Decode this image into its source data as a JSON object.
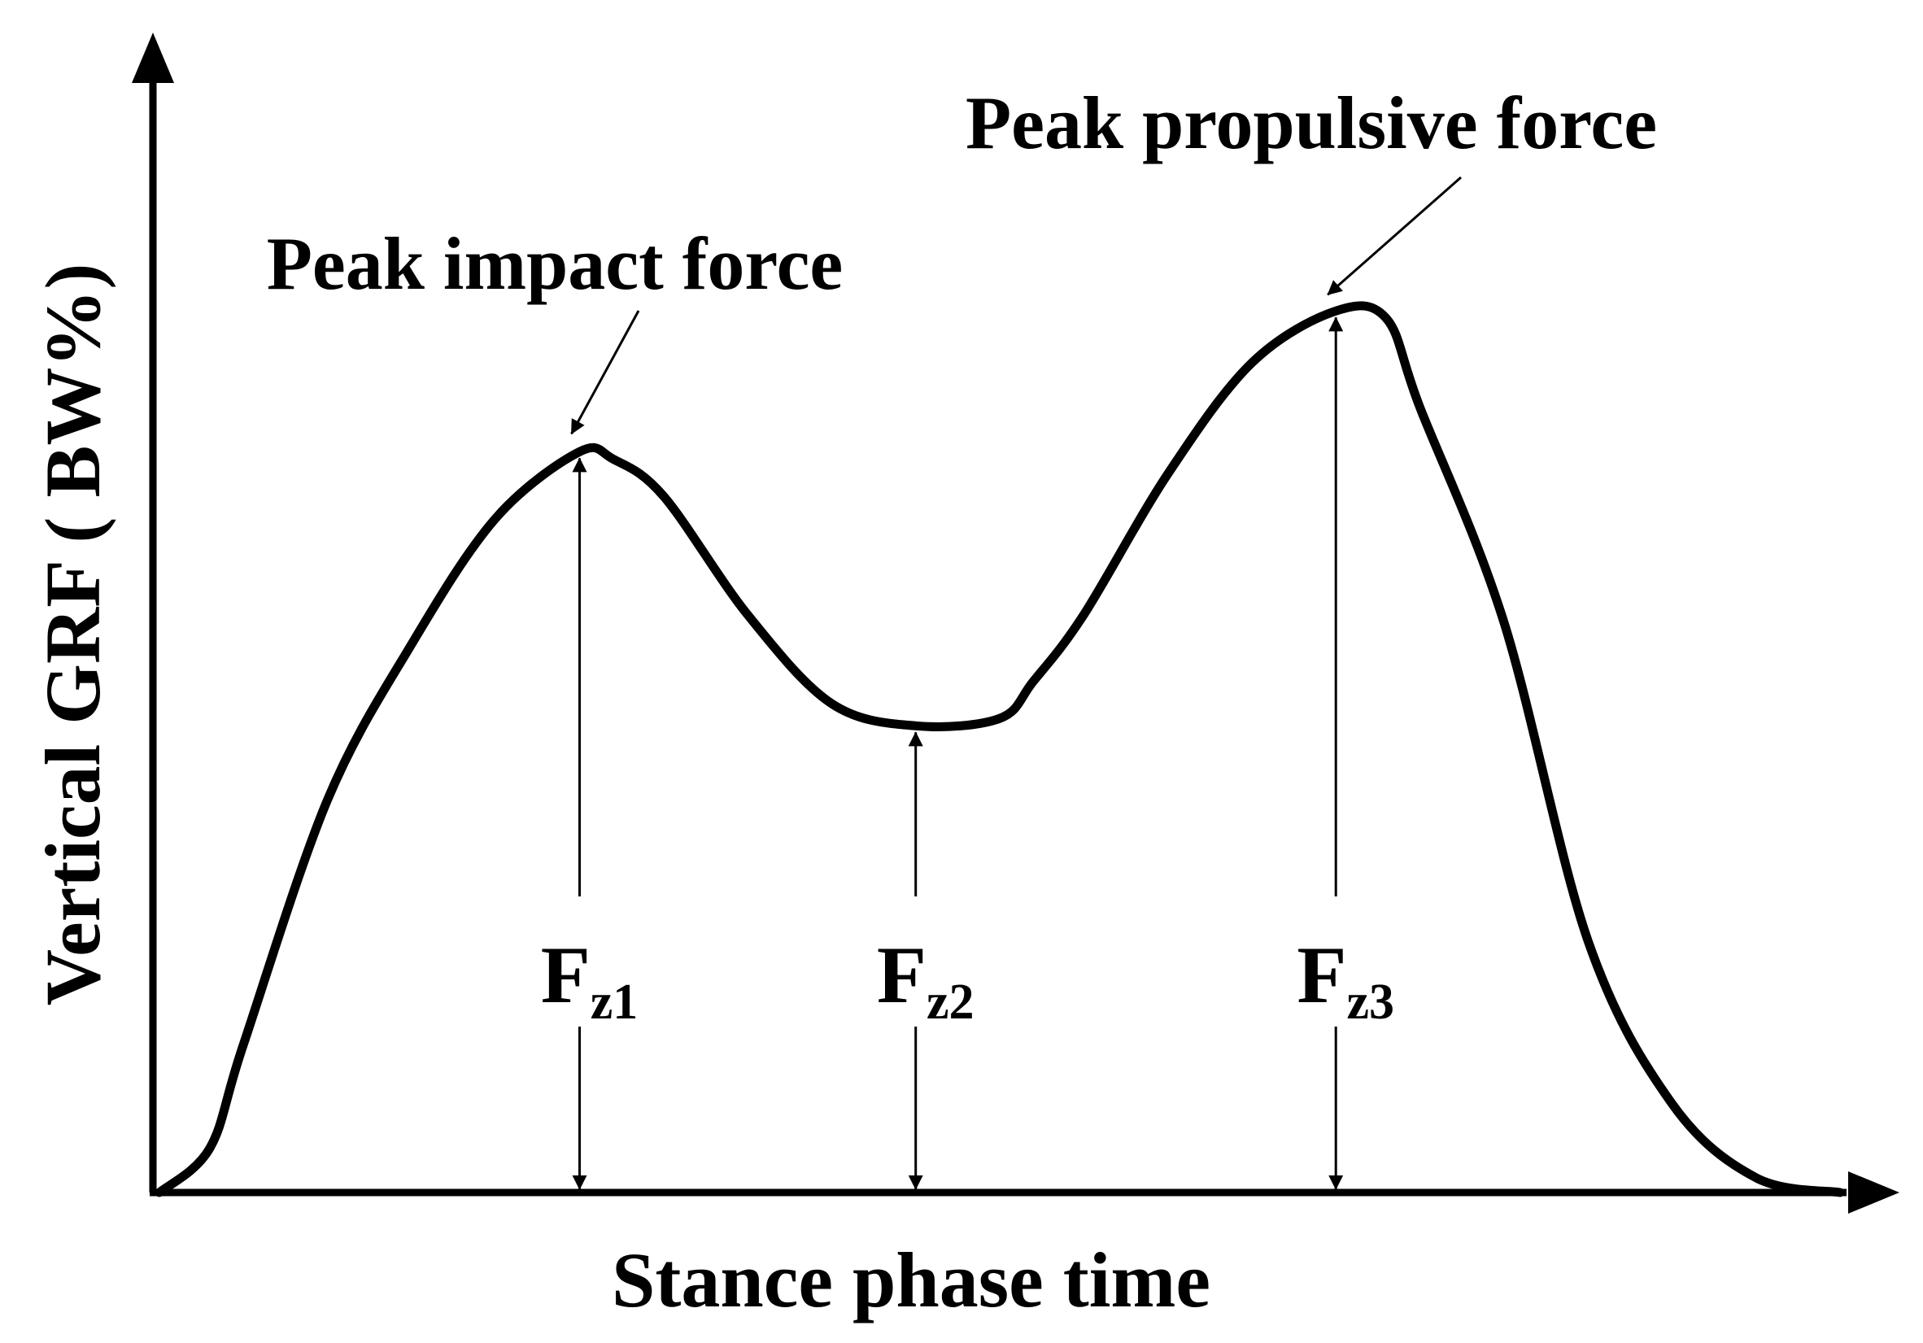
{
  "chart_data": {
    "type": "line",
    "xlabel": "Stance phase time",
    "ylabel": "Vertical GRF ( BW%)",
    "annotations": [
      {
        "text": "Peak impact force",
        "target": "Fz1"
      },
      {
        "text": "Peak propulsive force",
        "target": "Fz3"
      }
    ],
    "markers": [
      {
        "id": "Fz1",
        "base": "F",
        "sub": "z1"
      },
      {
        "id": "Fz2",
        "base": "F",
        "sub": "z2"
      },
      {
        "id": "Fz3",
        "base": "F",
        "sub": "z3"
      }
    ],
    "series": [
      {
        "x": [
          0,
          0.03,
          0.05,
          0.1,
          0.15,
          0.2,
          0.25,
          0.27,
          0.3,
          0.35,
          0.4,
          0.45,
          0.5,
          0.52,
          0.55,
          0.6,
          0.65,
          0.7,
          0.73,
          0.75,
          0.8,
          0.85,
          0.9,
          0.95,
          1.0
        ],
        "y": [
          0,
          6,
          20,
          53,
          74,
          91,
          100,
          99,
          94,
          78,
          66,
          63,
          64,
          69,
          78,
          97,
          112,
          119,
          118,
          106,
          77,
          34,
          12,
          2,
          0
        ]
      }
    ],
    "xlim": [
      0,
      1
    ],
    "ylim": [
      0,
      150
    ],
    "grid": false,
    "legend": "none"
  }
}
